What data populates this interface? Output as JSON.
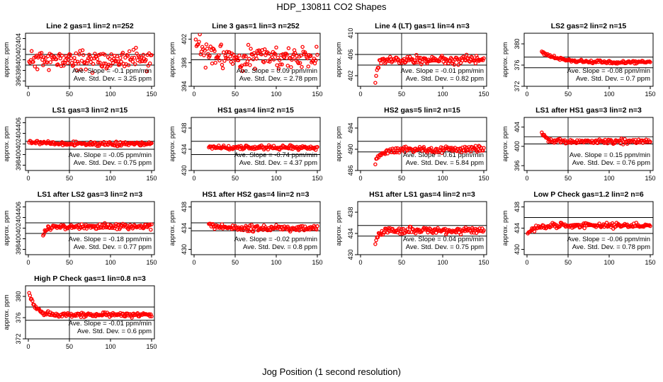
{
  "figure": {
    "title": "HDP_130811  CO2 Shapes",
    "xlabel": "Jog Position (1 second resolution)",
    "panel_ylabel": "approx. ppm"
  },
  "chart_data": [
    {
      "type": "scatter",
      "title": "Line 2 gas=1 lin=2 n=252",
      "ylabel": "approx. ppm",
      "xlim": [
        0,
        150
      ],
      "ylim": [
        395,
        405
      ],
      "xticks": [
        0,
        50,
        100,
        150
      ],
      "yticks": [
        396,
        398,
        400,
        402,
        404
      ],
      "hlines": [
        401,
        399
      ],
      "vline": 50,
      "x_start": 1,
      "center": 400,
      "noise": 0.9,
      "spike": 0,
      "spike_decay": 10,
      "seed": 11,
      "annotations": [
        "Ave. Slope = -0.1 ppm/min",
        "Ave. Std. Dev. = 3.25 ppm"
      ]
    },
    {
      "type": "scatter",
      "title": "Line 3 gas=1 lin=3 n=252",
      "ylabel": "approx. ppm",
      "xlim": [
        0,
        150
      ],
      "ylim": [
        394,
        403
      ],
      "xticks": [
        0,
        50,
        100,
        150
      ],
      "yticks": [
        394,
        398,
        402
      ],
      "hlines": [
        399.5,
        398.5
      ],
      "vline": 50,
      "x_start": 1,
      "center": 399,
      "noise": 1.0,
      "spike": 3,
      "spike_decay": 8,
      "seed": 23,
      "annotations": [
        "Ave. Slope = 0.09 ppm/min",
        "Ave. Std. Dev. = 2.78 ppm"
      ]
    },
    {
      "type": "scatter",
      "title": "Line 4 (LT) gas=1 lin=4 n=3",
      "ylabel": "approx. ppm",
      "xlim": [
        0,
        150
      ],
      "ylim": [
        400,
        410
      ],
      "xticks": [
        0,
        50,
        100,
        150
      ],
      "yticks": [
        402,
        406,
        410
      ],
      "hlines": [
        406,
        404
      ],
      "vline": 50,
      "x_start": 18,
      "center": 405,
      "noise": 0.4,
      "spike": -5,
      "spike_decay": 3,
      "seed": 37,
      "annotations": [
        "Ave. Slope = -0.01 ppm/min",
        "Ave. Std. Dev. = 0.82 ppm"
      ]
    },
    {
      "type": "scatter",
      "title": "LS2 gas=2 lin=2 n=15",
      "ylabel": "approx. ppm",
      "xlim": [
        0,
        150
      ],
      "ylim": [
        372,
        382
      ],
      "xticks": [
        0,
        50,
        100,
        150
      ],
      "yticks": [
        372,
        376,
        380
      ],
      "hlines": [
        377.5,
        375.5
      ],
      "vline": 50,
      "x_start": 18,
      "center": 376.5,
      "noise": 0.15,
      "spike": 2,
      "spike_decay": 20,
      "seed": 41,
      "annotations": [
        "Ave. Slope = -0.08 ppm/min",
        "Ave. Std. Dev. = 0.7 ppm"
      ]
    },
    {
      "type": "scatter",
      "title": "LS1 gas=3 lin=2 n=15",
      "ylabel": "approx. ppm",
      "xlim": [
        0,
        150
      ],
      "ylim": [
        397,
        407
      ],
      "xticks": [
        0,
        50,
        100,
        150
      ],
      "yticks": [
        398,
        400,
        402,
        404,
        406
      ],
      "hlines": [
        402.5,
        401
      ],
      "vline": 50,
      "x_start": 1,
      "center": 402,
      "noise": 0.18,
      "spike": 0.5,
      "spike_decay": 20,
      "seed": 53,
      "annotations": [
        "Ave. Slope = -0.05 ppm/min",
        "Ave. Std. Dev. = 0.75 ppm"
      ]
    },
    {
      "type": "scatter",
      "title": "HS1 gas=4 lin=2 n=15",
      "ylabel": "approx. ppm",
      "xlim": [
        0,
        150
      ],
      "ylim": [
        430,
        440
      ],
      "xticks": [
        0,
        50,
        100,
        150
      ],
      "yticks": [
        430,
        434,
        438
      ],
      "hlines": [
        435.5,
        433
      ],
      "vline": 50,
      "x_start": 18,
      "center": 434.3,
      "noise": 0.2,
      "spike": 0,
      "spike_decay": 10,
      "seed": 61,
      "annotations": [
        "Ave. Slope = -0.74 ppm/min",
        "Ave. Std. Dev. = 4.37 ppm"
      ]
    },
    {
      "type": "scatter",
      "title": "HS2 gas=5 lin=2 n=15",
      "ylabel": "approx. ppm",
      "xlim": [
        0,
        150
      ],
      "ylim": [
        486,
        496
      ],
      "xticks": [
        0,
        50,
        100,
        150
      ],
      "yticks": [
        486,
        490,
        494
      ],
      "hlines": [
        491.5,
        489.5
      ],
      "vline": 50,
      "x_start": 18,
      "center": 490,
      "noise": 0.3,
      "spike": -2,
      "spike_decay": 10,
      "seed": 71,
      "annotations": [
        "Ave. Slope = 0.61 ppm/min",
        "Ave. Std. Dev. = 5.84 ppm"
      ]
    },
    {
      "type": "scatter",
      "title": "LS1 after HS1 gas=3 lin=2 n=3",
      "ylabel": "approx. ppm",
      "xlim": [
        0,
        150
      ],
      "ylim": [
        395,
        406
      ],
      "xticks": [
        0,
        50,
        100,
        150
      ],
      "yticks": [
        396,
        400,
        404
      ],
      "hlines": [
        402,
        400.5
      ],
      "vline": 50,
      "x_start": 18,
      "center": 401,
      "noise": 0.25,
      "spike": 2,
      "spike_decay": 6,
      "seed": 83,
      "annotations": [
        "Ave. Slope = 0.15 ppm/min",
        "Ave. Std. Dev. = 0.76 ppm"
      ]
    },
    {
      "type": "scatter",
      "title": "LS1 after LS2 gas=3 lin=2 n=3",
      "ylabel": "approx. ppm",
      "xlim": [
        0,
        150
      ],
      "ylim": [
        397,
        407
      ],
      "xticks": [
        0,
        50,
        100,
        150
      ],
      "yticks": [
        398,
        400,
        402,
        404,
        406
      ],
      "hlines": [
        403,
        401
      ],
      "vline": 50,
      "x_start": 18,
      "center": 402.3,
      "noise": 0.25,
      "spike": -2,
      "spike_decay": 3,
      "seed": 97,
      "annotations": [
        "Ave. Slope = -0.18 ppm/min",
        "Ave. Std. Dev. = 0.77 ppm"
      ]
    },
    {
      "type": "scatter",
      "title": "HS1 after HS2 gas=4 lin=2 n=3",
      "ylabel": "approx. ppm",
      "xlim": [
        0,
        150
      ],
      "ylim": [
        429,
        439
      ],
      "xticks": [
        0,
        50,
        100,
        150
      ],
      "yticks": [
        430,
        434,
        438
      ],
      "hlines": [
        435,
        433.5
      ],
      "vline": 50,
      "x_start": 18,
      "center": 434,
      "noise": 0.3,
      "spike": 0.8,
      "spike_decay": 12,
      "seed": 101,
      "annotations": [
        "Ave. Slope = -0.02 ppm/min",
        "Ave. Std. Dev. = 0.8 ppm"
      ]
    },
    {
      "type": "scatter",
      "title": "HS1 after LS1 gas=4 lin=2 n=3",
      "ylabel": "approx. ppm",
      "xlim": [
        0,
        150
      ],
      "ylim": [
        430,
        440
      ],
      "xticks": [
        0,
        50,
        100,
        150
      ],
      "yticks": [
        430,
        434,
        438
      ],
      "hlines": [
        435.5,
        433.5
      ],
      "vline": 50,
      "x_start": 18,
      "center": 434.5,
      "noise": 0.3,
      "spike": -2,
      "spike_decay": 4,
      "seed": 113,
      "annotations": [
        "Ave. Slope = 0.04 ppm/min",
        "Ave. Std. Dev. = 0.75 ppm"
      ]
    },
    {
      "type": "scatter",
      "title": "Low P Check gas=1.2 lin=2 n=6",
      "ylabel": "approx. ppm",
      "xlim": [
        0,
        150
      ],
      "ylim": [
        429,
        439
      ],
      "xticks": [
        0,
        50,
        100,
        150
      ],
      "yticks": [
        430,
        434,
        438
      ],
      "hlines": [
        436,
        433
      ],
      "vline": 50,
      "x_start": 1,
      "center": 434.5,
      "noise": 0.25,
      "spike": -1.5,
      "spike_decay": 10,
      "seed": 127,
      "annotations": [
        "Ave. Slope = -0.06 ppm/min",
        "Ave. Std. Dev. = 0.78 ppm"
      ]
    },
    {
      "type": "scatter",
      "title": "High P Check gas=1 lin=0.8 n=3",
      "ylabel": "approx. ppm",
      "xlim": [
        0,
        150
      ],
      "ylim": [
        372,
        382
      ],
      "xticks": [
        0,
        50,
        100,
        150
      ],
      "yticks": [
        372,
        376,
        380
      ],
      "hlines": [
        378,
        375.5
      ],
      "vline": 50,
      "x_start": 1,
      "center": 376.5,
      "noise": 0.2,
      "spike": 4,
      "spike_decay": 8,
      "seed": 131,
      "annotations": [
        "Ave. Slope = -0.01 ppm/min",
        "Ave. Std. Dev. = 0.6 ppm"
      ]
    }
  ],
  "colors": {
    "points": "#ff0000",
    "axis": "#000000",
    "background": "#ffffff"
  }
}
